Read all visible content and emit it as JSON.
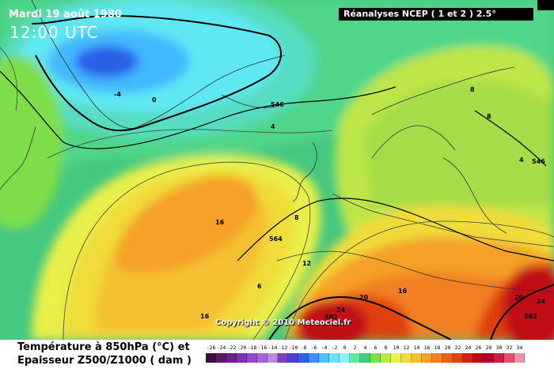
{
  "header": {
    "date": "Mardi 19 août 1980",
    "time": "12:00 UTC",
    "reanalysis": "Réanalyses NCEP ( 1 et 2 ) 2.5°"
  },
  "copyright": "Copyright © 2010 Meteociel.fr",
  "legend": {
    "title_line1": "Température à 850hPa (°C) et",
    "title_line2": "Epaisseur Z500/Z1000 ( dam )",
    "ticks": [
      "-26",
      "-24",
      "-22",
      "-20",
      "-18",
      "-16",
      "-14",
      "-12",
      "-10",
      "-8",
      "-6",
      "-4",
      "-2",
      "0",
      "2",
      "4",
      "6",
      "8",
      "10",
      "12",
      "14",
      "16",
      "18",
      "20",
      "22",
      "24",
      "26",
      "28",
      "30",
      "32",
      "34"
    ],
    "colors": [
      "#3d0f3d",
      "#5a1a66",
      "#6b1f8a",
      "#7f2fb0",
      "#9448c8",
      "#a863d6",
      "#b88ad9",
      "#7f3fb8",
      "#4d3fd0",
      "#2f5fe8",
      "#3f8fff",
      "#4fbfff",
      "#6fe0ff",
      "#8ff0ff",
      "#5fe8a0",
      "#3ed07a",
      "#7ede4a",
      "#bde64a",
      "#e8f04a",
      "#f0dc3a",
      "#f5c030",
      "#f5a028",
      "#f08020",
      "#e86018",
      "#e04010",
      "#d42010",
      "#c00818",
      "#b00030",
      "#c8204a",
      "#e05070",
      "#f090a8"
    ]
  },
  "map_labels": [
    {
      "text": "-4"
    },
    {
      "text": "0"
    },
    {
      "text": "546"
    },
    {
      "text": "4"
    },
    {
      "text": "8"
    },
    {
      "text": "8"
    },
    {
      "text": "4"
    },
    {
      "text": "546"
    },
    {
      "text": "16"
    },
    {
      "text": "8"
    },
    {
      "text": "564"
    },
    {
      "text": "12"
    },
    {
      "text": "6"
    },
    {
      "text": "16"
    },
    {
      "text": "24"
    },
    {
      "text": "582"
    },
    {
      "text": "20"
    },
    {
      "text": "16"
    },
    {
      "text": "20"
    },
    {
      "text": "24"
    },
    {
      "text": "582"
    }
  ]
}
